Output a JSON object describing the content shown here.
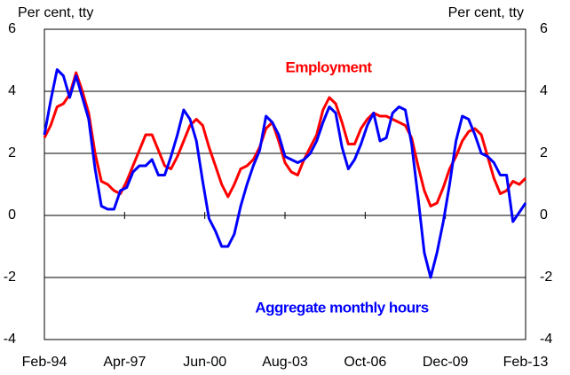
{
  "chart_data": {
    "type": "line",
    "y_label": "Per cent, tty",
    "y2_label": "Per cent, tty",
    "x": [
      "Feb-94",
      "May-94",
      "Aug-94",
      "Nov-94",
      "Feb-95",
      "May-95",
      "Aug-95",
      "Nov-95",
      "Feb-96",
      "May-96",
      "Aug-96",
      "Nov-96",
      "Feb-97",
      "May-97",
      "Aug-97",
      "Nov-97",
      "Feb-98",
      "May-98",
      "Aug-98",
      "Nov-98",
      "Feb-99",
      "May-99",
      "Aug-99",
      "Nov-99",
      "Feb-00",
      "May-00",
      "Aug-00",
      "Nov-00",
      "Feb-01",
      "May-01",
      "Aug-01",
      "Nov-01",
      "Feb-02",
      "May-02",
      "Aug-02",
      "Nov-02",
      "Feb-03",
      "May-03",
      "Aug-03",
      "Nov-03",
      "Feb-04",
      "May-04",
      "Aug-04",
      "Nov-04",
      "Feb-05",
      "May-05",
      "Aug-05",
      "Nov-05",
      "Feb-06",
      "May-06",
      "Aug-06",
      "Nov-06",
      "Feb-07",
      "May-07",
      "Aug-07",
      "Nov-07",
      "Feb-08",
      "May-08",
      "Aug-08",
      "Nov-08",
      "Feb-09",
      "May-09",
      "Aug-09",
      "Nov-09",
      "Feb-10",
      "May-10",
      "Aug-10",
      "Nov-10",
      "Feb-11",
      "May-11",
      "Aug-11",
      "Nov-11",
      "Feb-12",
      "May-12",
      "Aug-12",
      "Nov-12",
      "Feb-13"
    ],
    "xticks": [
      "Feb-94",
      "Apr-97",
      "Jun-00",
      "Aug-03",
      "Oct-06",
      "Dec-09",
      "Feb-13"
    ],
    "series": [
      {
        "name": "Employment",
        "color": "#ff0000",
        "values": [
          2.5,
          2.9,
          3.5,
          3.6,
          3.9,
          4.6,
          4.0,
          3.3,
          2.0,
          1.1,
          1.0,
          0.8,
          0.7,
          1.1,
          1.6,
          2.1,
          2.6,
          2.6,
          2.1,
          1.6,
          1.5,
          1.9,
          2.4,
          2.9,
          3.1,
          2.9,
          2.2,
          1.6,
          1.0,
          0.6,
          1.0,
          1.5,
          1.6,
          1.8,
          2.2,
          2.8,
          3.0,
          2.4,
          1.7,
          1.4,
          1.3,
          1.8,
          2.2,
          2.6,
          3.4,
          3.8,
          3.6,
          3.0,
          2.3,
          2.3,
          2.8,
          3.1,
          3.3,
          3.2,
          3.2,
          3.1,
          3.0,
          2.9,
          2.5,
          1.6,
          0.8,
          0.3,
          0.4,
          0.9,
          1.5,
          1.9,
          2.4,
          2.7,
          2.8,
          2.6,
          1.9,
          1.2,
          0.7,
          0.8,
          1.1,
          1.0,
          1.2
        ]
      },
      {
        "name": "Aggregate monthly hours",
        "color": "#0000ff",
        "values": [
          2.6,
          3.7,
          4.7,
          4.5,
          3.8,
          4.5,
          3.8,
          3.1,
          1.5,
          0.3,
          0.2,
          0.2,
          0.8,
          0.9,
          1.4,
          1.6,
          1.6,
          1.8,
          1.3,
          1.3,
          1.9,
          2.6,
          3.4,
          3.1,
          2.4,
          1.1,
          -0.1,
          -0.5,
          -1.0,
          -1.0,
          -0.6,
          0.3,
          1.0,
          1.6,
          2.1,
          3.2,
          3.0,
          2.6,
          1.9,
          1.8,
          1.7,
          1.8,
          2.0,
          2.4,
          3.0,
          3.5,
          3.3,
          2.2,
          1.5,
          1.8,
          2.3,
          2.9,
          3.3,
          2.4,
          2.5,
          3.3,
          3.5,
          3.4,
          2.3,
          0.6,
          -1.2,
          -2.0,
          -1.2,
          -0.2,
          1.0,
          2.4,
          3.2,
          3.1,
          2.6,
          2.0,
          1.9,
          1.7,
          1.3,
          1.3,
          -0.2,
          0.1,
          0.4
        ]
      }
    ],
    "ylim": [
      -4,
      6
    ],
    "yticks": [
      -4,
      -2,
      0,
      2,
      4,
      6
    ],
    "y2lim": [
      -4,
      6
    ],
    "y2ticks": [
      -4,
      -2,
      0,
      2,
      4,
      6
    ],
    "grid": true
  }
}
